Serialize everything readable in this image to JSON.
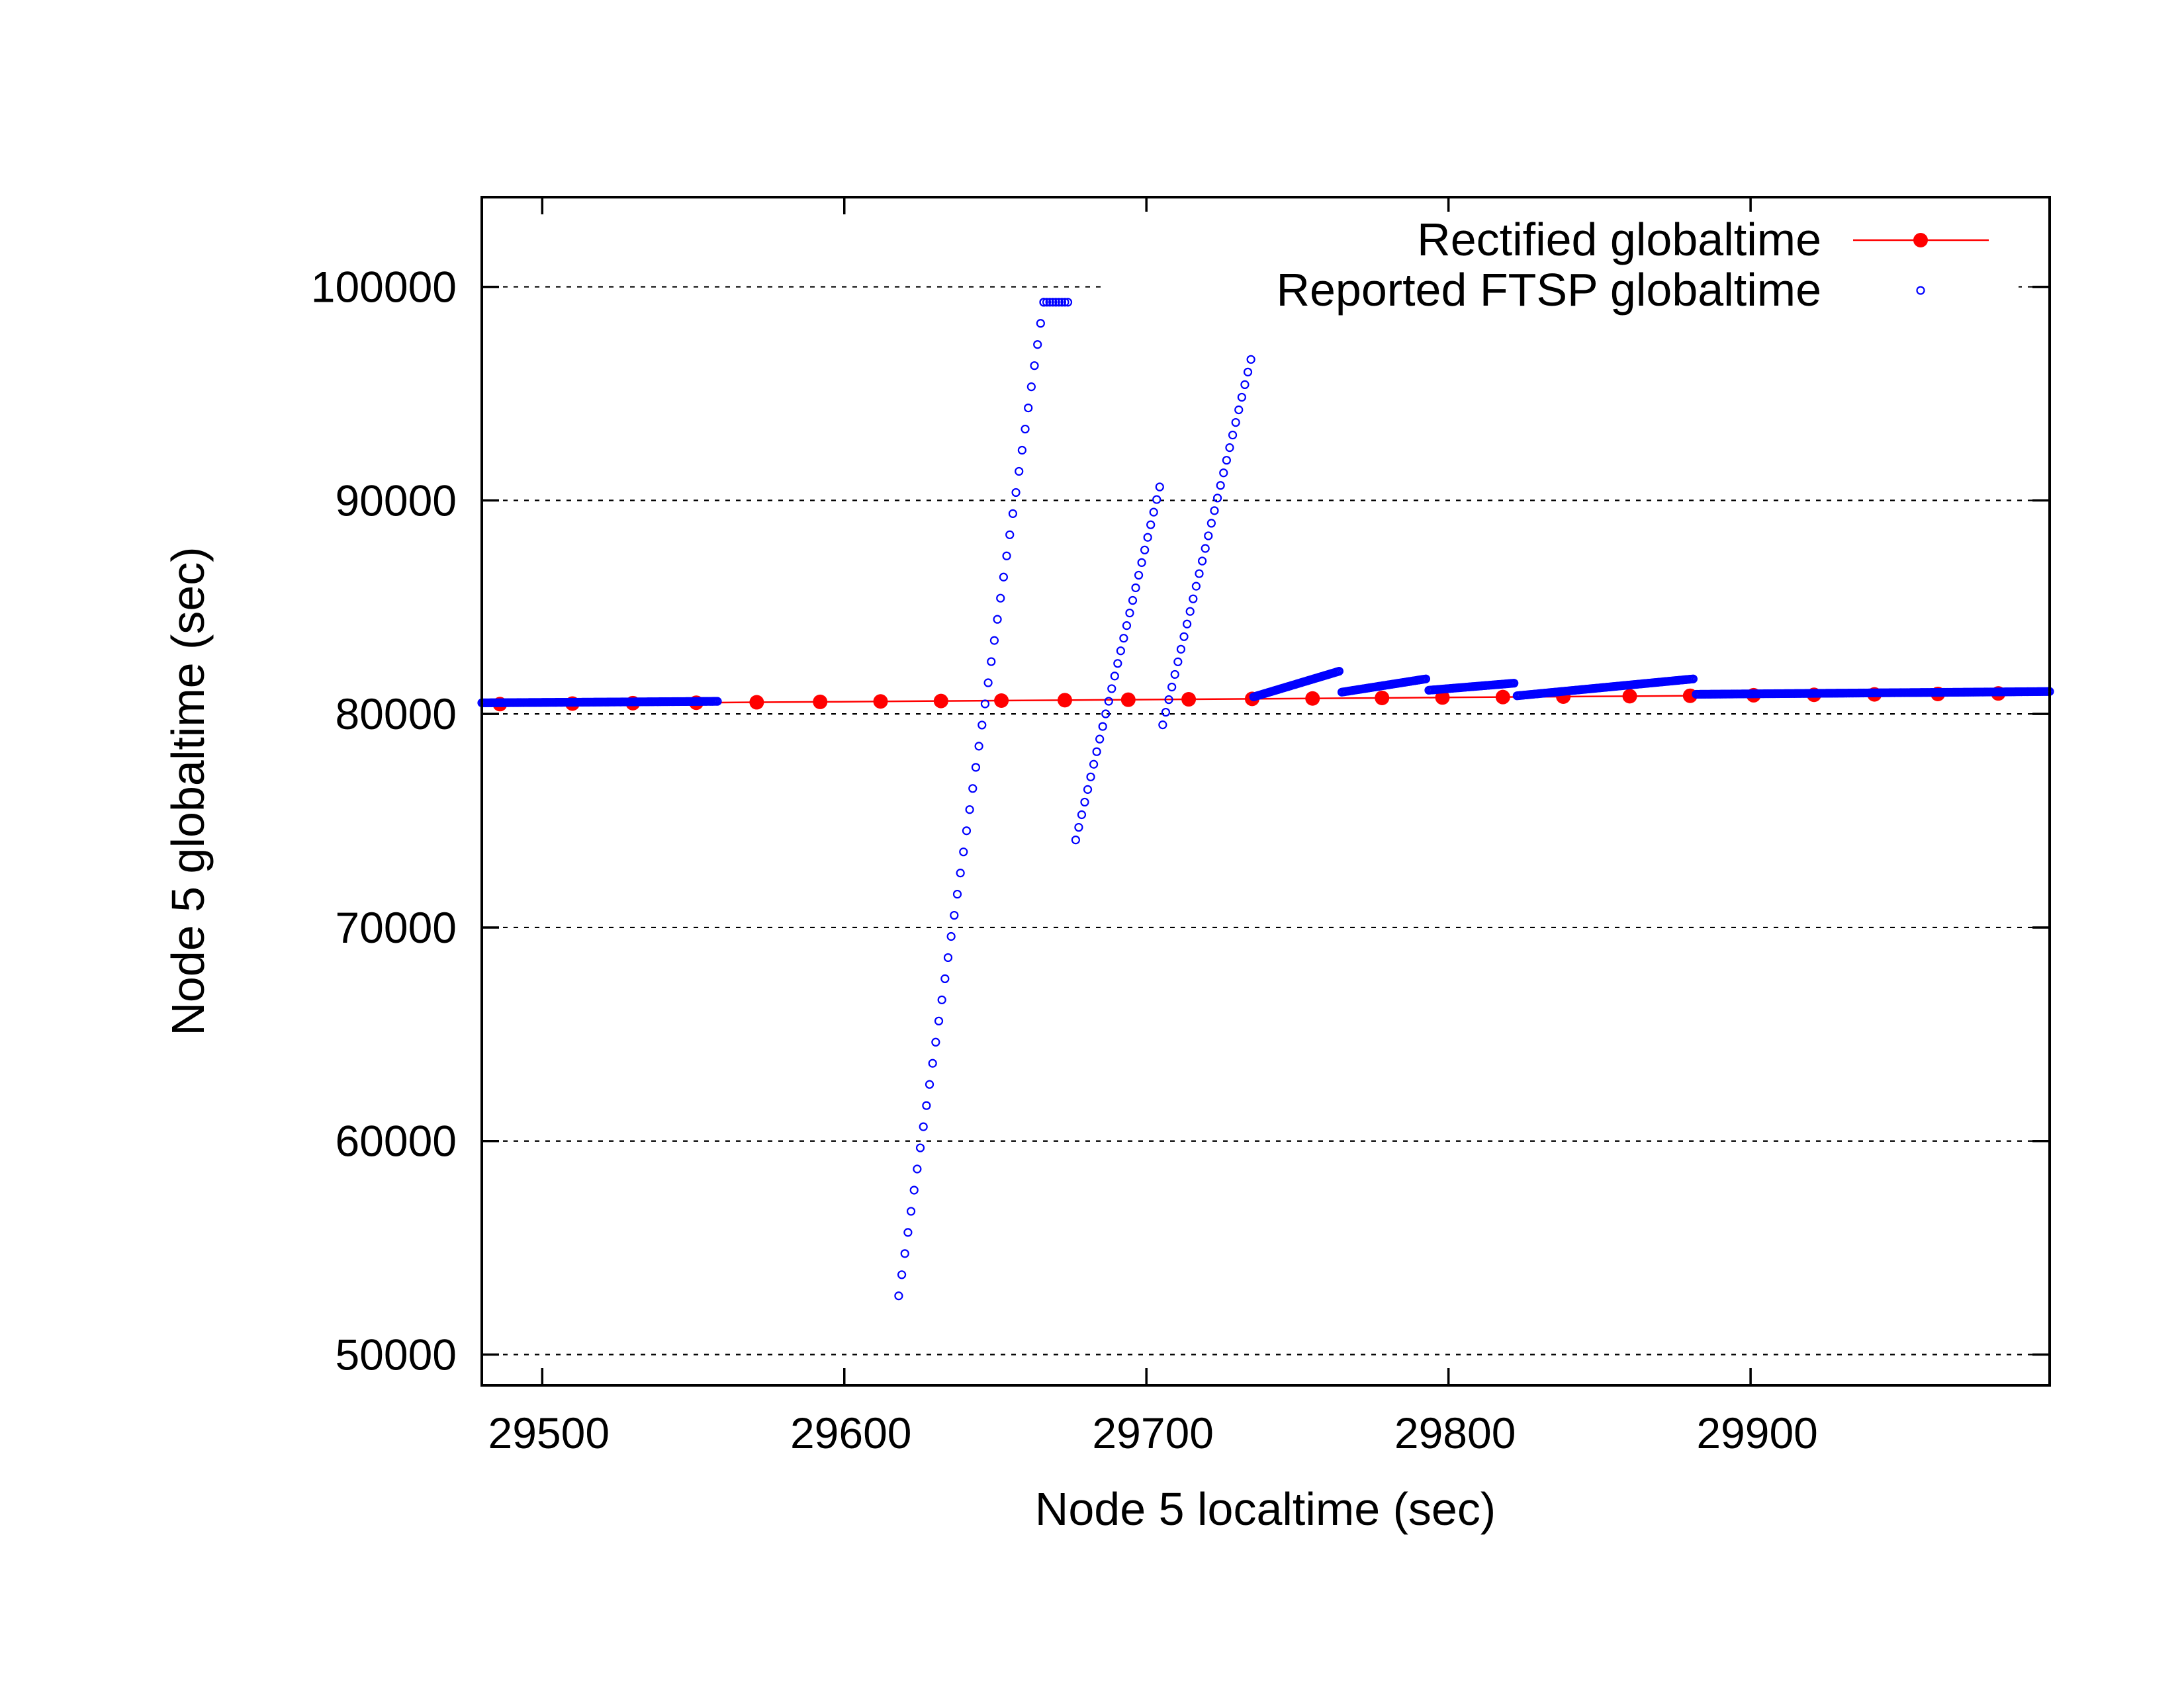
{
  "chart_data": {
    "type": "scatter",
    "title": "",
    "xlabel": "Node 5 localtime (sec)",
    "ylabel": "Node 5 globaltime (sec)",
    "xlim": [
      29480,
      29999
    ],
    "ylim": [
      48560,
      104200
    ],
    "x_ticks": [
      29500,
      29600,
      29700,
      29800,
      29900
    ],
    "x_tick_labels": [
      "29500",
      "29600",
      "29700",
      "29800",
      "29900"
    ],
    "y_ticks": [
      50000,
      60000,
      70000,
      80000,
      90000,
      100000
    ],
    "y_tick_labels": [
      "50000",
      "60000",
      "70000",
      "80000",
      "90000",
      "100000"
    ],
    "grid": "horizontal dashed",
    "legend_position": "top-right",
    "series": [
      {
        "name": "Rectified globaltime",
        "style": "line+filled-circle",
        "color": "#ff0000",
        "x": [
          29486,
          29510,
          29530,
          29551,
          29571,
          29592,
          29612,
          29632,
          29652,
          29673,
          29694,
          29714,
          29735,
          29755,
          29778,
          29798,
          29818,
          29838,
          29860,
          29880,
          29901,
          29921,
          29941,
          29962,
          29982
        ],
        "y": [
          80460,
          80485,
          80505,
          80525,
          80545,
          80565,
          80585,
          80605,
          80625,
          80645,
          80665,
          80685,
          80705,
          80725,
          80750,
          80770,
          80790,
          80810,
          80830,
          80850,
          80875,
          80895,
          80915,
          80935,
          80960
        ]
      },
      {
        "name": "Reported FTSP globaltime",
        "style": "open-circle",
        "color": "#0000ff",
        "segments": [
          {
            "x0": 29480,
            "y0": 80520,
            "x1": 29558,
            "y1": 80590,
            "n": 160
          },
          {
            "x0": 29618,
            "y0": 52750,
            "x1": 29666,
            "y1": 99280,
            "n": 48
          },
          {
            "x0": 29666,
            "y0": 99280,
            "x1": 29674,
            "y1": 99280,
            "n": 9
          },
          {
            "x0": 29676.6,
            "y0": 74100,
            "x1": 29704.4,
            "y1": 90630,
            "n": 29
          },
          {
            "x0": 29705.4,
            "y0": 79490,
            "x1": 29734.6,
            "y1": 96600,
            "n": 30
          },
          {
            "x0": 29735.5,
            "y0": 80800,
            "x1": 29763.8,
            "y1": 82000,
            "n": 60
          },
          {
            "x0": 29764.7,
            "y0": 81020,
            "x1": 29792.5,
            "y1": 81640,
            "n": 60
          },
          {
            "x0": 29793.5,
            "y0": 81110,
            "x1": 29821.7,
            "y1": 81440,
            "n": 60
          },
          {
            "x0": 29822.7,
            "y0": 80850,
            "x1": 29881,
            "y1": 81640,
            "n": 120
          },
          {
            "x0": 29882,
            "y0": 80920,
            "x1": 29999,
            "y1": 81050,
            "n": 240
          }
        ]
      }
    ]
  }
}
